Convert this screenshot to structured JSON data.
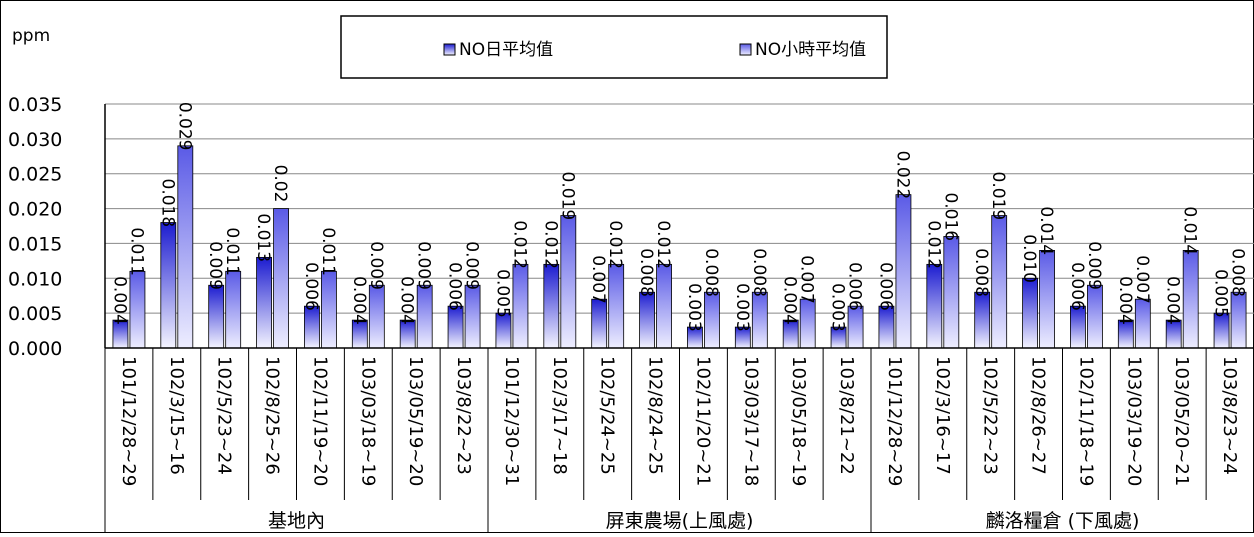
{
  "chart_data": {
    "type": "bar",
    "ylabel": "ppm",
    "ylim": [
      0,
      0.035
    ],
    "yticks": [
      "0.000",
      "0.005",
      "0.010",
      "0.015",
      "0.020",
      "0.025",
      "0.030",
      "0.035"
    ],
    "grid": true,
    "legend_position": "top",
    "categories": [
      "101/12/28~29",
      "102/3/15~16",
      "102/5/23~24",
      "102/8/25~26",
      "102/11/19~20",
      "103/03/18~19",
      "103/05/19~20",
      "103/8/22~23",
      "101/12/30~31",
      "102/3/17~18",
      "102/5/24~25",
      "102/8/24~25",
      "102/11/20~21",
      "103/03/17~18",
      "103/05/18~19",
      "103/8/21~22",
      "101/12/28~29",
      "102/3/16~17",
      "102/5/22~23",
      "102/8/26~27",
      "102/11/18~19",
      "103/03/19~20",
      "103/05/20~21",
      "103/8/23~24"
    ],
    "groups": [
      {
        "label": "基地內",
        "count": 8
      },
      {
        "label": "屏東農場(上風處)",
        "count": 8
      },
      {
        "label": "麟洛糧倉 (下風處)",
        "count": 8
      }
    ],
    "series": [
      {
        "name": "NO日平均值",
        "color": "#2a2ad8",
        "values": [
          0.004,
          0.018,
          0.009,
          0.013,
          0.006,
          0.004,
          0.004,
          0.006,
          0.005,
          0.012,
          0.007,
          0.008,
          0.003,
          0.003,
          0.004,
          0.003,
          0.006,
          0.012,
          0.008,
          0.01,
          0.006,
          0.004,
          0.004,
          0.005
        ],
        "labels": [
          "0.004",
          "0.018",
          "0.009",
          "0.013",
          "0.006",
          "0.004",
          "0.004",
          "0.006",
          "0.005",
          "0.012",
          "0.007",
          "0.008",
          "0.003",
          "0.003",
          "0.004",
          "0.003",
          "0.006",
          "0.012",
          "0.008",
          "0.010",
          "0.006",
          "0.004",
          "0.004",
          "0.005"
        ]
      },
      {
        "name": "NO小時平均值",
        "color": "#7b7bea",
        "values": [
          0.011,
          0.029,
          0.011,
          0.02,
          0.011,
          0.009,
          0.009,
          0.009,
          0.012,
          0.019,
          0.012,
          0.012,
          0.008,
          0.008,
          0.007,
          0.006,
          0.022,
          0.016,
          0.019,
          0.014,
          0.009,
          0.007,
          0.014,
          0.008
        ],
        "labels": [
          "0.011",
          "0.029",
          "0.011",
          "0.02",
          "0.011",
          "0.009",
          "0.009",
          "0.009",
          "0.012",
          "0.019",
          "0.012",
          "0.012",
          "0.008",
          "0.008",
          "0.007",
          "0.006",
          "0.022",
          "0.016",
          "0.019",
          "0.014",
          "0.009",
          "0.007",
          "0.014",
          "0.008"
        ]
      }
    ]
  }
}
